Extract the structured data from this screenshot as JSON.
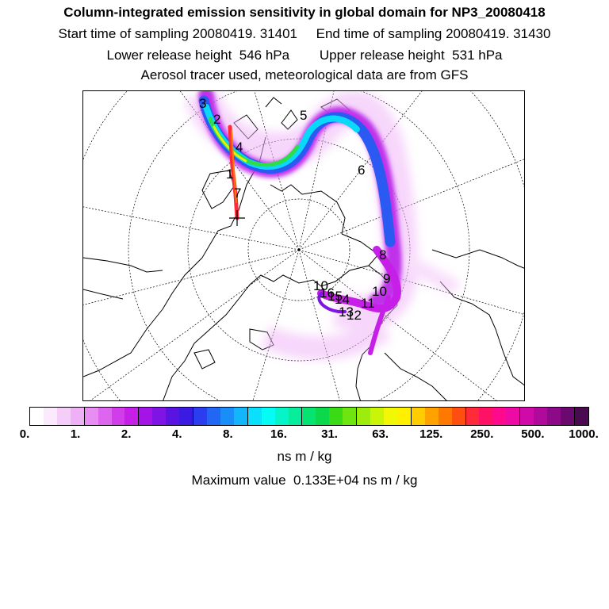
{
  "header": {
    "title": "Column-integrated emission sensitivity in global domain for NP3_20080418",
    "line2": "Start time of sampling 20080419. 31401     End time of sampling 20080419. 31430",
    "line3": "Lower release height  546 hPa        Upper release height  531 hPa",
    "line4": "Aerosol tracer used, meteorological data are from GFS"
  },
  "map": {
    "projection": "north polar stereographic",
    "trajectory_labels": [
      "3",
      "2",
      "4",
      "1",
      "7",
      "5",
      "6",
      "8",
      "9",
      "10",
      "10",
      "11",
      "12",
      "13",
      "14",
      "15",
      "16"
    ]
  },
  "colorbar": {
    "colors": [
      "#ffffff",
      "#fbe9fd",
      "#f5cdf9",
      "#efb1f5",
      "#e88df1",
      "#dd66ee",
      "#d23deb",
      "#c51fe8",
      "#a414e6",
      "#7f14e4",
      "#5a14e2",
      "#3b1ae4",
      "#2a3ef0",
      "#2266f4",
      "#1a8ef8",
      "#12b6fb",
      "#0ae0fd",
      "#04fcf4",
      "#05f5c8",
      "#06ee9c",
      "#07e370",
      "#0bd84a",
      "#3ada14",
      "#6ee410",
      "#9eec0c",
      "#caf408",
      "#f0f805",
      "#fff000",
      "#ffcc00",
      "#ffa200",
      "#ff7800",
      "#ff4e10",
      "#ff2a3a",
      "#ff1266",
      "#ff0a8c",
      "#ee0aa4",
      "#d00aa8",
      "#b00a9c",
      "#8c0a88",
      "#6a0a6e",
      "#4a0a50"
    ],
    "tick_labels": [
      "0.",
      "1.",
      "2.",
      "4.",
      "8.",
      "16.",
      "31.",
      "63.",
      "125.",
      "250.",
      "500.",
      "1000."
    ],
    "unit": "ns m / kg"
  },
  "footer": {
    "max_value": "Maximum value  0.133E+04 ns m / kg"
  }
}
